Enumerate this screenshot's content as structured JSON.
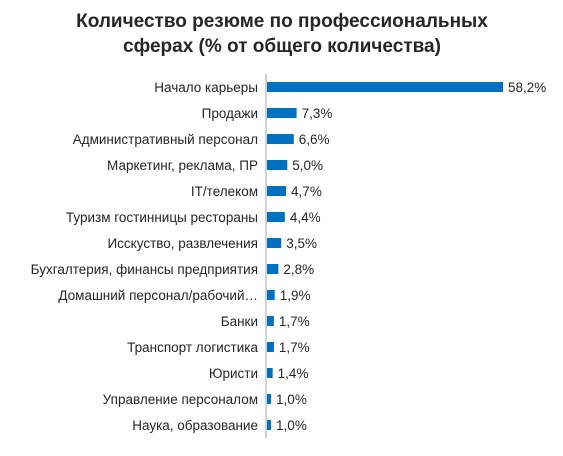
{
  "chart_data": {
    "type": "bar",
    "orientation": "horizontal",
    "title_lines": [
      "Количество резюме по профессиональных",
      "сферах (% от общего количества)"
    ],
    "categories": [
      "Начало карьеры",
      "Продажи",
      "Административный персонал",
      "Маркетинг, реклама, ПР",
      "IT/телеком",
      "Туризм гостинницы рестораны",
      "Исскуство, развлечения",
      "Бухгалтерия, финансы предприятия",
      "Домашний персонал/рабочий…",
      "Банки",
      "Транспорт логистика",
      "Юристи",
      "Управление персоналом",
      "Наука, образование"
    ],
    "values": [
      58.2,
      7.3,
      6.6,
      5.0,
      4.7,
      4.4,
      3.5,
      2.8,
      1.9,
      1.7,
      1.7,
      1.4,
      1.0,
      1.0
    ],
    "value_labels": [
      "58,2%",
      "7,3%",
      "6,6%",
      "5,0%",
      "4,7%",
      "4,4%",
      "3,5%",
      "2,8%",
      "1,9%",
      "1,7%",
      "1,7%",
      "1,4%",
      "1,0%",
      "1,0%"
    ],
    "unit": "%",
    "xlim": [
      0,
      58.2
    ],
    "grid": false,
    "legend": "none",
    "bar_color": "#0070C0",
    "axis_color": "#A6A6A6"
  }
}
